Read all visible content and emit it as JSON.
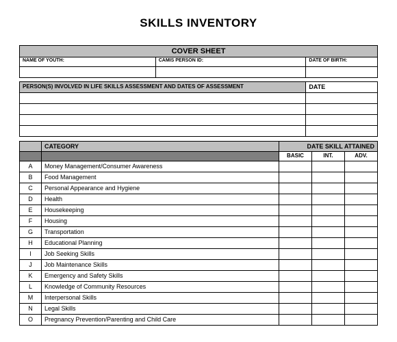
{
  "title": "SKILLS INVENTORY",
  "cover": {
    "header": "COVER SHEET",
    "name_label": "NAME OF YOUTH:",
    "camis_label": "CAMIS PERSON ID:",
    "dob_label": "DATE OF BIRTH:",
    "persons_label": "PERSON(S) INVOLVED IN LIFE SKILLS ASSESSMENT AND DATES OF ASSESSMENT",
    "date_label": "DATE"
  },
  "cat_header": {
    "category": "CATEGORY",
    "date_attained": "DATE SKILL ATTAINED",
    "basic": "BASIC",
    "int": "INT.",
    "adv": "ADV."
  },
  "categories": [
    {
      "letter": "A",
      "name": "Money Management/Consumer Awareness"
    },
    {
      "letter": "B",
      "name": "Food Management"
    },
    {
      "letter": "C",
      "name": "Personal Appearance and Hygiene"
    },
    {
      "letter": "D",
      "name": "Health"
    },
    {
      "letter": "E",
      "name": "Housekeeping"
    },
    {
      "letter": "F",
      "name": "Housing"
    },
    {
      "letter": "G",
      "name": "Transportation"
    },
    {
      "letter": "H",
      "name": "Educational Planning"
    },
    {
      "letter": "I",
      "name": "Job Seeking Skills"
    },
    {
      "letter": "J",
      "name": "Job Maintenance Skills"
    },
    {
      "letter": "K",
      "name": "Emergency and Safety Skills"
    },
    {
      "letter": "L",
      "name": "Knowledge of Community Resources"
    },
    {
      "letter": "M",
      "name": "Interpersonal Skills"
    },
    {
      "letter": "N",
      "name": "Legal Skills"
    },
    {
      "letter": "O",
      "name": "Pregnancy Prevention/Parenting and Child Care"
    }
  ],
  "colors": {
    "header_bg": "#bfbfbf",
    "dark_bg": "#808080",
    "border": "#000000",
    "page_bg": "#ffffff",
    "text": "#000000"
  },
  "fonts": {
    "family": "Arial",
    "title_size": 17,
    "header_size": 11,
    "label_size": 7,
    "body_size": 9
  }
}
